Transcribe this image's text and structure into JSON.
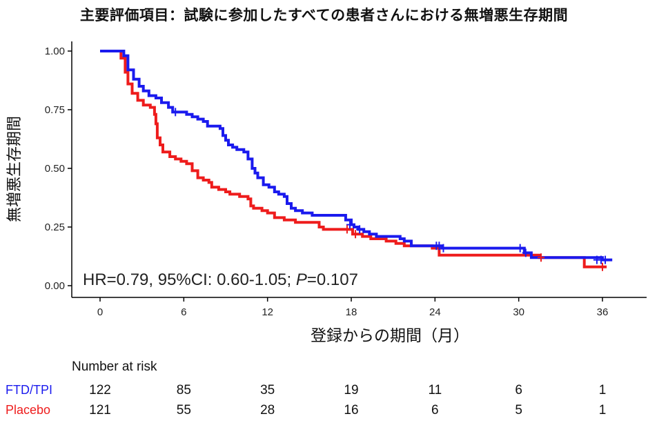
{
  "title": "主要評価項目：試験に参加したすべての患者さんにおける無増悪生存期間",
  "chart_data": {
    "type": "line",
    "title": "主要評価項目：試験に参加したすべての患者さんにおける無増悪生存期間",
    "xlabel": "登録からの期間（月）",
    "ylabel": "無増悪生存期間",
    "xlim": [
      0,
      36
    ],
    "ylim": [
      0,
      1
    ],
    "x_ticks": [
      "0",
      "6",
      "12",
      "18",
      "24",
      "30",
      "36"
    ],
    "y_ticks": [
      "0.00",
      "0.25",
      "0.50",
      "0.75",
      "1.00"
    ],
    "grid": false,
    "annotation": {
      "prefix": "HR=0.79, 95%CI: 0.60-1.05; ",
      "p_label": "P",
      "p_value": "=0.107"
    },
    "series": [
      {
        "name": "FTD/TPI",
        "color": "#1a1aee",
        "points": [
          [
            0,
            1.0
          ],
          [
            1.7,
            1.0
          ],
          [
            1.7,
            0.98
          ],
          [
            2.0,
            0.92
          ],
          [
            2.4,
            0.88
          ],
          [
            2.8,
            0.85
          ],
          [
            3.1,
            0.83
          ],
          [
            3.5,
            0.81
          ],
          [
            4.0,
            0.8
          ],
          [
            4.4,
            0.78
          ],
          [
            4.9,
            0.76
          ],
          [
            5.2,
            0.74
          ],
          [
            6.0,
            0.74
          ],
          [
            6.2,
            0.73
          ],
          [
            6.6,
            0.72
          ],
          [
            7.0,
            0.71
          ],
          [
            7.4,
            0.7
          ],
          [
            7.7,
            0.68
          ],
          [
            8.6,
            0.67
          ],
          [
            8.8,
            0.64
          ],
          [
            9.0,
            0.62
          ],
          [
            9.2,
            0.6
          ],
          [
            9.5,
            0.59
          ],
          [
            9.8,
            0.58
          ],
          [
            10.3,
            0.57
          ],
          [
            10.6,
            0.54
          ],
          [
            10.9,
            0.5
          ],
          [
            11.1,
            0.48
          ],
          [
            11.3,
            0.46
          ],
          [
            11.7,
            0.43
          ],
          [
            12.1,
            0.42
          ],
          [
            12.5,
            0.4
          ],
          [
            12.8,
            0.39
          ],
          [
            13.2,
            0.38
          ],
          [
            13.4,
            0.35
          ],
          [
            13.7,
            0.33
          ],
          [
            14.0,
            0.32
          ],
          [
            14.5,
            0.31
          ],
          [
            15.2,
            0.3
          ],
          [
            17.6,
            0.3
          ],
          [
            17.6,
            0.28
          ],
          [
            18.0,
            0.26
          ],
          [
            18.2,
            0.25
          ],
          [
            18.5,
            0.24
          ],
          [
            18.9,
            0.23
          ],
          [
            19.3,
            0.22
          ],
          [
            19.8,
            0.21
          ],
          [
            21.5,
            0.2
          ],
          [
            21.8,
            0.19
          ],
          [
            22.3,
            0.17
          ],
          [
            24.4,
            0.17
          ],
          [
            24.5,
            0.16
          ],
          [
            30.0,
            0.16
          ],
          [
            30.4,
            0.14
          ],
          [
            30.9,
            0.12
          ],
          [
            36.0,
            0.11
          ],
          [
            36.7,
            0.11
          ]
        ]
      },
      {
        "name": "Placebo",
        "color": "#ee1c1c",
        "points": [
          [
            0,
            1.0
          ],
          [
            1.3,
            1.0
          ],
          [
            1.5,
            0.97
          ],
          [
            1.8,
            0.91
          ],
          [
            2.0,
            0.86
          ],
          [
            2.3,
            0.82
          ],
          [
            2.7,
            0.79
          ],
          [
            3.1,
            0.77
          ],
          [
            3.6,
            0.76
          ],
          [
            3.9,
            0.73
          ],
          [
            4.0,
            0.69
          ],
          [
            4.1,
            0.63
          ],
          [
            4.3,
            0.6
          ],
          [
            4.5,
            0.57
          ],
          [
            5.0,
            0.55
          ],
          [
            5.4,
            0.54
          ],
          [
            5.8,
            0.53
          ],
          [
            6.2,
            0.52
          ],
          [
            6.6,
            0.49
          ],
          [
            7.0,
            0.46
          ],
          [
            7.4,
            0.45
          ],
          [
            7.8,
            0.44
          ],
          [
            8.0,
            0.42
          ],
          [
            8.5,
            0.41
          ],
          [
            9.0,
            0.4
          ],
          [
            9.3,
            0.39
          ],
          [
            10.0,
            0.38
          ],
          [
            10.6,
            0.37
          ],
          [
            10.8,
            0.34
          ],
          [
            11.0,
            0.33
          ],
          [
            11.6,
            0.32
          ],
          [
            12.0,
            0.31
          ],
          [
            12.5,
            0.29
          ],
          [
            13.2,
            0.28
          ],
          [
            14.0,
            0.27
          ],
          [
            15.3,
            0.27
          ],
          [
            15.7,
            0.25
          ],
          [
            16.0,
            0.24
          ],
          [
            17.8,
            0.24
          ],
          [
            18.1,
            0.22
          ],
          [
            18.8,
            0.21
          ],
          [
            19.4,
            0.2
          ],
          [
            20.5,
            0.19
          ],
          [
            21.2,
            0.18
          ],
          [
            21.8,
            0.17
          ],
          [
            23.4,
            0.17
          ],
          [
            23.8,
            0.16
          ],
          [
            24.3,
            0.13
          ],
          [
            30.0,
            0.13
          ],
          [
            31.5,
            0.12
          ],
          [
            34.4,
            0.12
          ],
          [
            34.7,
            0.08
          ],
          [
            36.3,
            0.08
          ]
        ]
      }
    ],
    "censor_marks": {
      "FTD/TPI": [
        [
          5.4,
          0.74
        ],
        [
          17.9,
          0.26
        ],
        [
          18.6,
          0.24
        ],
        [
          24.1,
          0.17
        ],
        [
          24.3,
          0.17
        ],
        [
          24.6,
          0.16
        ],
        [
          30.1,
          0.16
        ],
        [
          30.5,
          0.14
        ],
        [
          35.6,
          0.11
        ],
        [
          35.9,
          0.11
        ],
        [
          36.2,
          0.11
        ]
      ],
      "Placebo": [
        [
          17.7,
          0.24
        ],
        [
          18.3,
          0.22
        ],
        [
          31.6,
          0.12
        ],
        [
          36.0,
          0.08
        ]
      ]
    },
    "risk_table": {
      "title": "Number at risk",
      "times": [
        0,
        6,
        12,
        18,
        24,
        30,
        36
      ],
      "rows": [
        {
          "name": "FTD/TPI",
          "color": "#1a1aee",
          "values": [
            "122",
            "85",
            "35",
            "19",
            "11",
            "6",
            "1"
          ]
        },
        {
          "name": "Placebo",
          "color": "#ee1c1c",
          "values": [
            "121",
            "55",
            "28",
            "16",
            "6",
            "5",
            "1"
          ]
        }
      ]
    }
  }
}
